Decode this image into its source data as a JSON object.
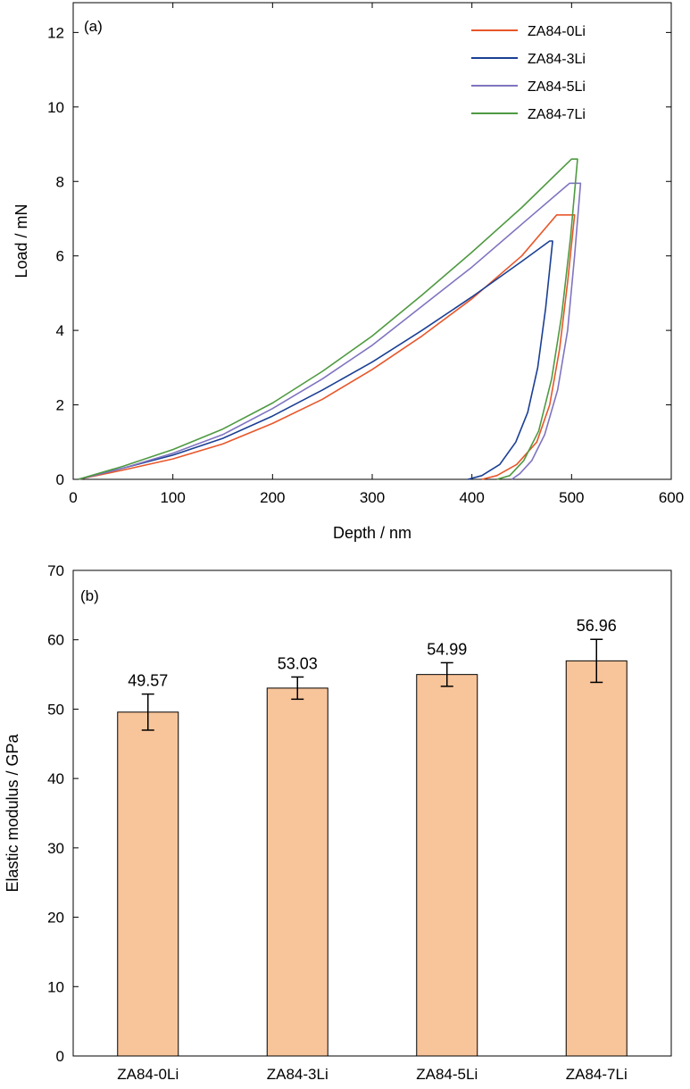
{
  "chart_data": [
    {
      "type": "line",
      "panel_label": "(a)",
      "xlabel": "Depth / nm",
      "ylabel": "Load / mN",
      "xlim": [
        0,
        600
      ],
      "ylim": [
        0,
        12.8
      ],
      "xticks": [
        0,
        100,
        200,
        300,
        400,
        500,
        600
      ],
      "yticks": [
        0,
        2,
        4,
        6,
        8,
        10,
        12
      ],
      "grid": false,
      "legend_position": "top-right",
      "series": [
        {
          "name": "ZA84-0Li",
          "color": "#e8562a",
          "loading": [
            [
              5,
              0
            ],
            [
              50,
              0.25
            ],
            [
              100,
              0.55
            ],
            [
              150,
              0.95
            ],
            [
              200,
              1.5
            ],
            [
              250,
              2.15
            ],
            [
              300,
              2.95
            ],
            [
              350,
              3.85
            ],
            [
              400,
              4.85
            ],
            [
              450,
              6.0
            ],
            [
              485,
              7.1
            ]
          ],
          "hold": [
            [
              485,
              7.1
            ],
            [
              503,
              7.1
            ]
          ],
          "unloading": [
            [
              503,
              7.1
            ],
            [
              496,
              5.3
            ],
            [
              488,
              3.5
            ],
            [
              478,
              2.0
            ],
            [
              465,
              1.0
            ],
            [
              445,
              0.4
            ],
            [
              425,
              0.1
            ],
            [
              410,
              0
            ]
          ]
        },
        {
          "name": "ZA84-3Li",
          "color": "#1a3f94",
          "loading": [
            [
              5,
              0
            ],
            [
              50,
              0.3
            ],
            [
              100,
              0.65
            ],
            [
              150,
              1.1
            ],
            [
              200,
              1.7
            ],
            [
              250,
              2.4
            ],
            [
              300,
              3.15
            ],
            [
              350,
              4.0
            ],
            [
              400,
              4.9
            ],
            [
              450,
              5.85
            ],
            [
              478,
              6.4
            ]
          ],
          "hold": [
            [
              470,
              6.4
            ],
            [
              481,
              6.4
            ]
          ],
          "unloading": [
            [
              481,
              6.4
            ],
            [
              474,
              4.6
            ],
            [
              466,
              3.0
            ],
            [
              456,
              1.8
            ],
            [
              444,
              1.0
            ],
            [
              428,
              0.4
            ],
            [
              410,
              0.1
            ],
            [
              396,
              0
            ]
          ]
        },
        {
          "name": "ZA84-5Li",
          "color": "#7f74c0",
          "loading": [
            [
              5,
              0
            ],
            [
              50,
              0.3
            ],
            [
              100,
              0.7
            ],
            [
              150,
              1.2
            ],
            [
              200,
              1.9
            ],
            [
              250,
              2.7
            ],
            [
              300,
              3.6
            ],
            [
              350,
              4.65
            ],
            [
              400,
              5.7
            ],
            [
              450,
              6.85
            ],
            [
              498,
              7.95
            ]
          ],
          "hold": [
            [
              495,
              7.95
            ],
            [
              509,
              7.95
            ]
          ],
          "unloading": [
            [
              509,
              7.95
            ],
            [
              503,
              6.0
            ],
            [
              496,
              4.0
            ],
            [
              486,
              2.4
            ],
            [
              473,
              1.2
            ],
            [
              460,
              0.5
            ],
            [
              448,
              0.15
            ],
            [
              440,
              0
            ]
          ]
        },
        {
          "name": "ZA84-7Li",
          "color": "#4e9a41",
          "loading": [
            [
              5,
              0
            ],
            [
              50,
              0.35
            ],
            [
              100,
              0.8
            ],
            [
              150,
              1.35
            ],
            [
              200,
              2.05
            ],
            [
              250,
              2.9
            ],
            [
              300,
              3.85
            ],
            [
              350,
              4.95
            ],
            [
              400,
              6.1
            ],
            [
              450,
              7.3
            ],
            [
              500,
              8.6
            ]
          ],
          "hold": [
            [
              498,
              8.6
            ],
            [
              506,
              8.6
            ]
          ],
          "unloading": [
            [
              506,
              8.6
            ],
            [
              499,
              6.5
            ],
            [
              490,
              4.4
            ],
            [
              480,
              2.7
            ],
            [
              467,
              1.3
            ],
            [
              452,
              0.5
            ],
            [
              438,
              0.1
            ],
            [
              425,
              0
            ]
          ]
        }
      ]
    },
    {
      "type": "bar",
      "panel_label": "(b)",
      "xlabel": "",
      "ylabel": "Elastic modulus / GPa",
      "ylim": [
        0,
        70
      ],
      "yticks": [
        0,
        10,
        20,
        30,
        40,
        50,
        60,
        70
      ],
      "grid": false,
      "bar_color": "#f8c49a",
      "categories": [
        "ZA84-0Li",
        "ZA84-3Li",
        "ZA84-5Li",
        "ZA84-7Li"
      ],
      "values": [
        49.57,
        53.03,
        54.99,
        56.96
      ],
      "errors": [
        2.6,
        1.6,
        1.7,
        3.1
      ],
      "data_labels": [
        "49.57",
        "53.03",
        "54.99",
        "56.96"
      ]
    }
  ]
}
